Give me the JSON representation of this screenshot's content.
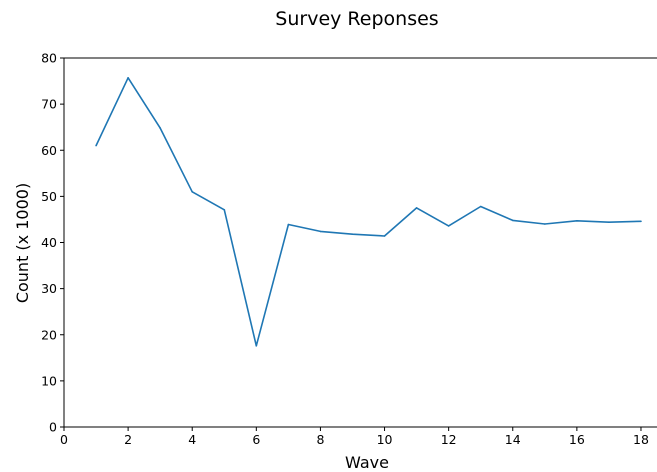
{
  "chart_data": {
    "type": "line",
    "title": "Survey Reponses",
    "xlabel": "Wave",
    "ylabel": "Count (x 1000)",
    "xlim": [
      0,
      18.5
    ],
    "ylim": [
      0,
      80
    ],
    "xticks": [
      0,
      2,
      4,
      6,
      8,
      10,
      12,
      14,
      16,
      18
    ],
    "yticks": [
      0,
      10,
      20,
      30,
      40,
      50,
      60,
      70,
      80
    ],
    "grid": false,
    "series": [
      {
        "color": "#1f77b4",
        "x": [
          1,
          2,
          3,
          4,
          5,
          6,
          7,
          8,
          9,
          10,
          11,
          12,
          13,
          14,
          15,
          16,
          17,
          18
        ],
        "y": [
          61.0,
          75.7,
          64.8,
          51.0,
          47.1,
          17.6,
          43.9,
          42.4,
          41.8,
          41.4,
          47.5,
          43.6,
          47.8,
          44.8,
          44.0,
          44.7,
          44.4,
          44.6
        ]
      }
    ]
  }
}
